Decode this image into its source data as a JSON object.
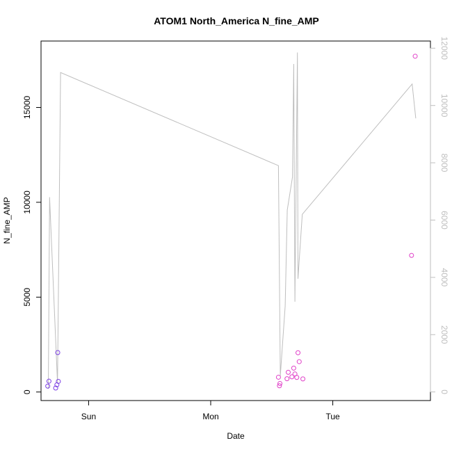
{
  "chart_data": {
    "type": "scatter",
    "title": "ATOM1 North_America N_fine_AMP",
    "xlabel": "Date",
    "ylabel": "N_fine_AMP",
    "x_ticks": [
      {
        "label": "Sun",
        "value": 1.0
      },
      {
        "label": "Mon",
        "value": 2.0
      },
      {
        "label": "Tue",
        "value": 3.0
      }
    ],
    "xlim": [
      0.61,
      3.8
    ],
    "ylim": [
      -450,
      18500
    ],
    "y_ticks": [
      0,
      5000,
      10000,
      15000
    ],
    "y2lim": [
      -300,
      12250
    ],
    "y2_ticks": [
      0,
      2000,
      4000,
      6000,
      8000,
      10000,
      12000
    ],
    "colors": {
      "axis": "#000000",
      "right_axis": "#bebebe",
      "line": "#bebebe",
      "points_early": "#7b3fe4",
      "points_late": "#e040c8"
    },
    "grid": false,
    "series": [
      {
        "type": "scatter",
        "axis": "left",
        "points": [
          {
            "x": 0.665,
            "y": 310
          },
          {
            "x": 0.675,
            "y": 570
          },
          {
            "x": 0.73,
            "y": 210
          },
          {
            "x": 0.74,
            "y": 380
          },
          {
            "x": 0.747,
            "y": 2080
          },
          {
            "x": 0.752,
            "y": 560
          },
          {
            "x": 2.555,
            "y": 780
          },
          {
            "x": 2.563,
            "y": 330
          },
          {
            "x": 2.567,
            "y": 450
          },
          {
            "x": 2.625,
            "y": 700
          },
          {
            "x": 2.635,
            "y": 1040
          },
          {
            "x": 2.665,
            "y": 800
          },
          {
            "x": 2.68,
            "y": 1260
          },
          {
            "x": 2.69,
            "y": 950
          },
          {
            "x": 2.705,
            "y": 770
          },
          {
            "x": 2.715,
            "y": 2070
          },
          {
            "x": 2.725,
            "y": 1600
          },
          {
            "x": 2.755,
            "y": 690
          },
          {
            "x": 3.645,
            "y": 7200
          },
          {
            "x": 3.675,
            "y": 17700
          }
        ]
      },
      {
        "type": "line",
        "axis": "right",
        "points": [
          {
            "x": 0.67,
            "y": 110
          },
          {
            "x": 0.68,
            "y": 6800
          },
          {
            "x": 0.745,
            "y": 300
          },
          {
            "x": 0.77,
            "y": 11150
          },
          {
            "x": 2.555,
            "y": 7900
          },
          {
            "x": 2.57,
            "y": 560
          },
          {
            "x": 2.61,
            "y": 3000
          },
          {
            "x": 2.627,
            "y": 6350
          },
          {
            "x": 2.67,
            "y": 7500
          },
          {
            "x": 2.68,
            "y": 11450
          },
          {
            "x": 2.69,
            "y": 3150
          },
          {
            "x": 2.71,
            "y": 11850
          },
          {
            "x": 2.715,
            "y": 3950
          },
          {
            "x": 2.75,
            "y": 6200
          },
          {
            "x": 3.65,
            "y": 10750
          },
          {
            "x": 3.68,
            "y": 9550
          }
        ]
      }
    ]
  }
}
